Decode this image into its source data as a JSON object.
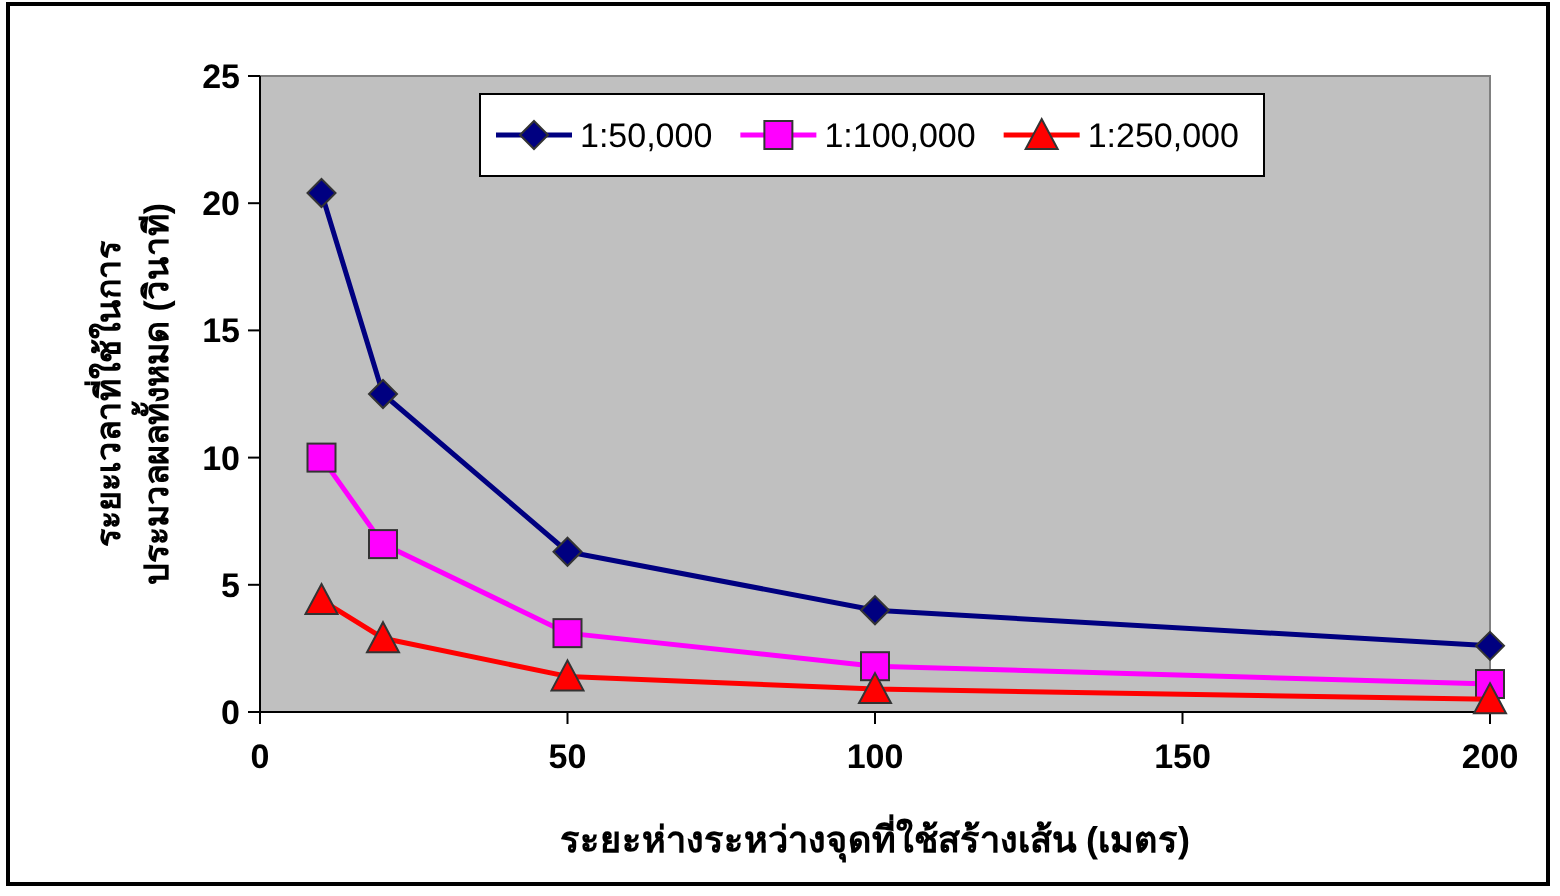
{
  "chart_data": {
    "type": "line",
    "xlabel": "ระยะห่างระหว่างจุดที่ใช้สร้างเส้น (เมตร)",
    "ylabel": "ระยะเวลาที่ใช้ในการ\nประมวลผลทั้งหมด (วินาที)",
    "x": [
      10,
      20,
      50,
      100,
      200
    ],
    "series": [
      {
        "name": "1:50,000",
        "color": "#000080",
        "marker": "diamond",
        "values": [
          20.4,
          12.5,
          6.3,
          4.0,
          2.6
        ]
      },
      {
        "name": "1:100,000",
        "color": "#ff00ff",
        "marker": "square",
        "values": [
          10.0,
          6.6,
          3.1,
          1.8,
          1.1
        ]
      },
      {
        "name": "1:250,000",
        "color": "#ff0000",
        "marker": "triangle",
        "values": [
          4.4,
          2.9,
          1.4,
          0.9,
          0.5
        ]
      }
    ],
    "xlim": [
      0,
      200
    ],
    "xticks": [
      0,
      50,
      100,
      150,
      200
    ],
    "ylim": [
      0,
      25
    ],
    "yticks": [
      0,
      5,
      10,
      15,
      20,
      25
    ],
    "grid": false,
    "legend": "top",
    "line_style": "solid"
  }
}
